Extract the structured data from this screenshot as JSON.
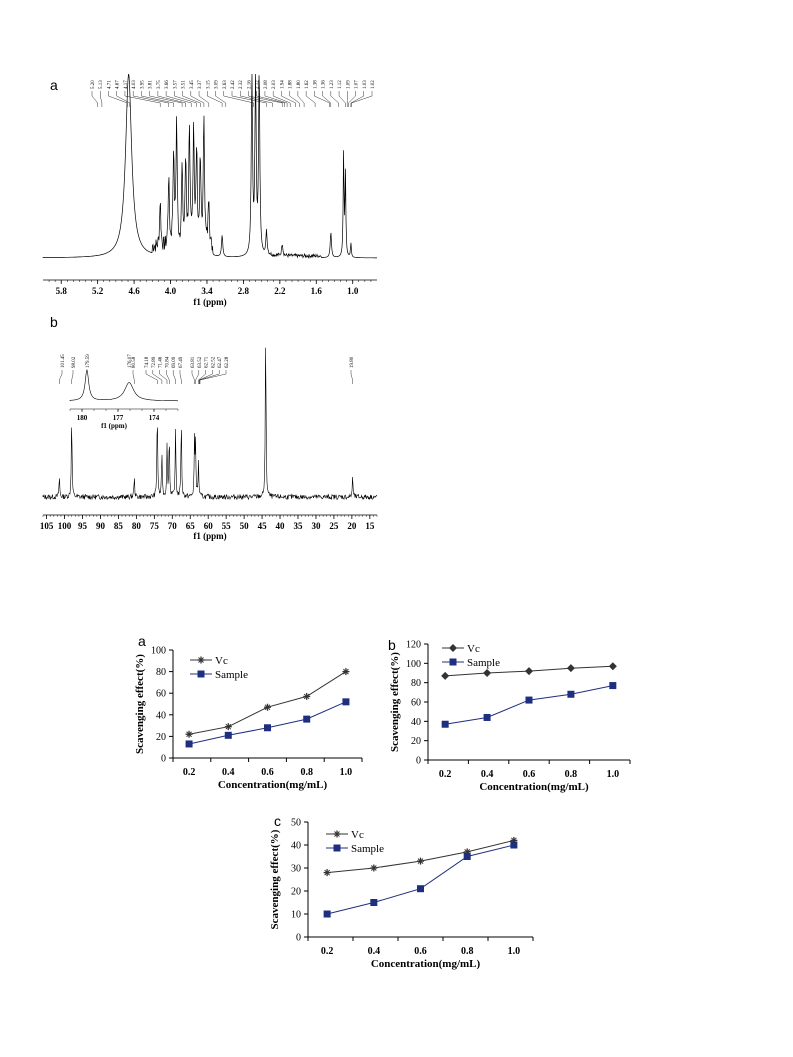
{
  "nmr": [
    {
      "letter": "a",
      "type": "spectrum",
      "xlabel": "f1 (ppm)",
      "x_ticks": [
        "5.8",
        "5.2",
        "4.6",
        "4.0",
        "3.4",
        "2.8",
        "2.2",
        "1.6",
        "1.0"
      ],
      "peak_labels": [
        "5.20",
        "5.13",
        "4.71",
        "4.67",
        "4.17",
        "4.03",
        "3.95",
        "3.81",
        "3.75",
        "3.66",
        "3.57",
        "3.51",
        "3.45",
        "3.37",
        "3.15",
        "3.09",
        "2.63",
        "2.42",
        "2.32",
        "2.16",
        "2.12",
        "2.08",
        "2.03",
        "1.94",
        "1.88",
        "1.80",
        "1.62",
        "1.38",
        "1.36",
        "1.23",
        "1.12",
        "1.09",
        "1.07",
        "1.03",
        "1.02"
      ],
      "peaks": [
        {
          "ppm": 4.69,
          "h": 1.0,
          "w": 0.06
        },
        {
          "ppm": 4.17,
          "h": 0.26,
          "w": 0.012
        },
        {
          "ppm": 4.03,
          "h": 0.38,
          "w": 0.012
        },
        {
          "ppm": 3.95,
          "h": 0.52,
          "w": 0.012
        },
        {
          "ppm": 3.9,
          "h": 0.68,
          "w": 0.012
        },
        {
          "ppm": 3.81,
          "h": 0.42,
          "w": 0.012
        },
        {
          "ppm": 3.75,
          "h": 0.48,
          "w": 0.012
        },
        {
          "ppm": 3.69,
          "h": 0.62,
          "w": 0.012
        },
        {
          "ppm": 3.62,
          "h": 0.66,
          "w": 0.012
        },
        {
          "ppm": 3.57,
          "h": 0.52,
          "w": 0.012
        },
        {
          "ppm": 3.51,
          "h": 0.46,
          "w": 0.012
        },
        {
          "ppm": 3.45,
          "h": 0.72,
          "w": 0.012
        },
        {
          "ppm": 3.37,
          "h": 0.3,
          "w": 0.012
        },
        {
          "ppm": 3.15,
          "h": 0.12,
          "w": 0.012
        },
        {
          "ppm": 2.66,
          "h": 1.0,
          "w": 0.012
        },
        {
          "ppm": 2.6,
          "h": 1.0,
          "w": 0.012
        },
        {
          "ppm": 2.54,
          "h": 1.0,
          "w": 0.012
        },
        {
          "ppm": 2.42,
          "h": 0.14,
          "w": 0.012
        },
        {
          "ppm": 2.16,
          "h": 0.07,
          "w": 0.012
        },
        {
          "ppm": 1.36,
          "h": 0.14,
          "w": 0.012
        },
        {
          "ppm": 1.15,
          "h": 0.58,
          "w": 0.008
        },
        {
          "ppm": 1.12,
          "h": 0.46,
          "w": 0.008
        },
        {
          "ppm": 1.03,
          "h": 0.08,
          "w": 0.008
        }
      ],
      "xlim": [
        6.1,
        0.6
      ]
    },
    {
      "letter": "b",
      "type": "spectrum",
      "xlabel": "f1 (ppm)",
      "x_ticks": [
        "105",
        "100",
        "95",
        "90",
        "85",
        "80",
        "75",
        "70",
        "65",
        "60",
        "55",
        "50",
        "45",
        "40",
        "35",
        "30",
        "25",
        "20",
        "15"
      ],
      "peak_labels": [
        "101.45",
        "98.02",
        "80.58",
        "74.18",
        "72.89",
        "71.46",
        "70.84",
        "69.09",
        "67.49",
        "63.81",
        "63.52",
        "62.71",
        "62.52",
        "62.47",
        "62.28",
        "19.80"
      ],
      "peaks": [
        {
          "ppm": 101.45,
          "h": 0.12
        },
        {
          "ppm": 98.02,
          "h": 0.48
        },
        {
          "ppm": 80.58,
          "h": 0.12
        },
        {
          "ppm": 74.18,
          "h": 0.52
        },
        {
          "ppm": 72.89,
          "h": 0.26
        },
        {
          "ppm": 71.46,
          "h": 0.3
        },
        {
          "ppm": 70.84,
          "h": 0.36
        },
        {
          "ppm": 69.09,
          "h": 0.4
        },
        {
          "ppm": 67.49,
          "h": 0.46
        },
        {
          "ppm": 63.81,
          "h": 0.32
        },
        {
          "ppm": 63.52,
          "h": 0.3
        },
        {
          "ppm": 62.71,
          "h": 0.2
        },
        {
          "ppm": 44.0,
          "h": 1.0
        },
        {
          "ppm": 19.8,
          "h": 0.12
        }
      ],
      "xlim": [
        106,
        13
      ],
      "inset": {
        "xlabel": "f1 (ppm)",
        "x_ticks": [
          "180",
          "177",
          "174"
        ],
        "peak_labels": [
          "179.59",
          "176.07"
        ],
        "peaks": [
          {
            "ppm": 179.59,
            "h": 0.75
          },
          {
            "ppm": 176.07,
            "h": 0.45
          }
        ],
        "xlim": [
          181,
          172
        ]
      }
    }
  ],
  "chart_data": [
    {
      "letter": "a",
      "type": "line",
      "x": [
        0.2,
        0.4,
        0.6,
        0.8,
        1.0
      ],
      "xlabel": "Concentration(mg/mL)",
      "ylabel": "Scavenging effect(%)",
      "ylim": [
        0,
        100
      ],
      "y_ticks": [
        "0",
        "20",
        "40",
        "60",
        "80",
        "100"
      ],
      "x_ticks": [
        "0.2",
        "0.4",
        "0.6",
        "0.8",
        "1.0"
      ],
      "legend": "top-left",
      "series": [
        {
          "name": "Vc",
          "marker": "star",
          "color": "#333333",
          "values": [
            22,
            29,
            47,
            57,
            80
          ]
        },
        {
          "name": "Sample",
          "marker": "square",
          "color": "#1f2f80",
          "values": [
            13,
            21,
            28,
            36,
            52
          ]
        }
      ]
    },
    {
      "letter": "b",
      "type": "line",
      "x": [
        0.2,
        0.4,
        0.6,
        0.8,
        1.0
      ],
      "xlabel": "Concentration(mg/mL)",
      "ylabel": "Scavenging effect(%)",
      "ylim": [
        0,
        120
      ],
      "y_ticks": [
        "0",
        "20",
        "40",
        "60",
        "80",
        "100",
        "120"
      ],
      "x_ticks": [
        "0.2",
        "0.4",
        "0.6",
        "0.8",
        "1.0"
      ],
      "legend": "top-left",
      "series": [
        {
          "name": "Vc",
          "marker": "diamond",
          "color": "#333333",
          "values": [
            87,
            90,
            92,
            95,
            97
          ]
        },
        {
          "name": "Sample",
          "marker": "square",
          "color": "#1f2f80",
          "values": [
            37,
            44,
            62,
            68,
            77
          ]
        }
      ]
    },
    {
      "letter": "c",
      "type": "line",
      "x": [
        0.2,
        0.4,
        0.6,
        0.8,
        1.0
      ],
      "xlabel": "Concentration(mg/mL)",
      "ylabel": "Scavenging effect(%)",
      "ylim": [
        0,
        50
      ],
      "y_ticks": [
        "0",
        "10",
        "20",
        "30",
        "40",
        "50"
      ],
      "x_ticks": [
        "0.2",
        "0.4",
        "0.6",
        "0.8",
        "1.0"
      ],
      "legend": "top-left",
      "series": [
        {
          "name": "Vc",
          "marker": "star",
          "color": "#333333",
          "values": [
            28,
            30,
            33,
            37,
            42
          ]
        },
        {
          "name": "Sample",
          "marker": "square",
          "color": "#1f2f80",
          "values": [
            10,
            15,
            21,
            35,
            40
          ]
        }
      ]
    }
  ]
}
